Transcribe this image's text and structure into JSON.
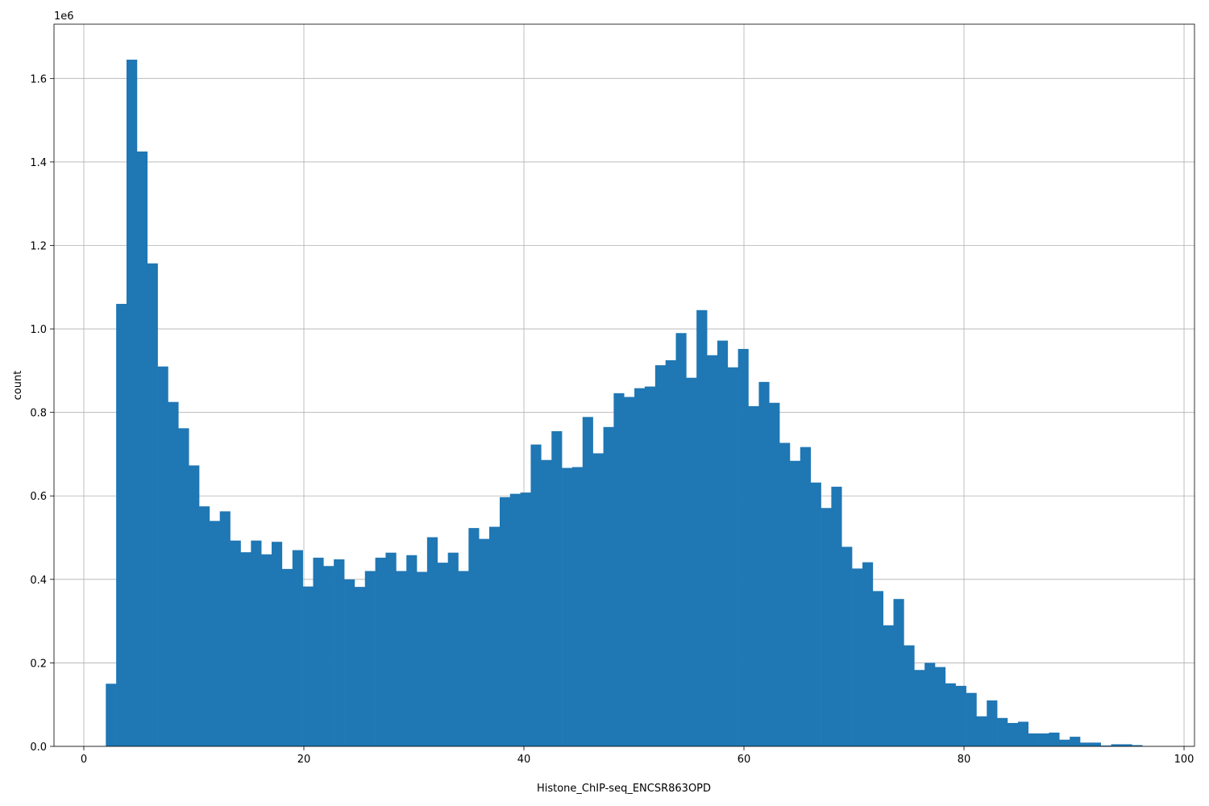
{
  "chart_data": {
    "type": "histogram",
    "x_label": "Histone_ChIP-seq_ENCSR863OPD",
    "y_label": "count",
    "y_offset_label": "1e6",
    "color": "#1f77b4",
    "grid": true,
    "bins": [
      2.0,
      2.94,
      3.88,
      4.83,
      5.77,
      6.71,
      7.65,
      8.59,
      9.54,
      10.48,
      11.42,
      12.36,
      13.3,
      14.25,
      15.19,
      16.13,
      17.07,
      18.01,
      18.96,
      19.9,
      20.84,
      21.78,
      22.72,
      23.67,
      24.61,
      25.55,
      26.49,
      27.43,
      28.38,
      29.32,
      30.26,
      31.2,
      32.14,
      33.09,
      34.03,
      34.97,
      35.91,
      36.85,
      37.8,
      38.74,
      39.68,
      40.62,
      41.56,
      42.51,
      43.45,
      44.39,
      45.33,
      46.27,
      47.22,
      48.16,
      49.1,
      50.04,
      50.98,
      51.93,
      52.87,
      53.81,
      54.75,
      55.69,
      56.64,
      57.58,
      58.52,
      59.46,
      60.4,
      61.35,
      62.29,
      63.23,
      64.17,
      65.11,
      66.06,
      67.0,
      67.94,
      68.88,
      69.82,
      70.77,
      71.71,
      72.65,
      73.59,
      74.53,
      75.48,
      76.42,
      77.36,
      78.3,
      79.24,
      80.19,
      81.13,
      82.07,
      83.01,
      83.95,
      84.9,
      85.84,
      86.78,
      87.72,
      88.66,
      89.61,
      90.55,
      91.49,
      92.43,
      93.37,
      94.32,
      95.26,
      96.2
    ],
    "values": [
      150000,
      1060000,
      1645000,
      1425000,
      1157000,
      910000,
      825000,
      762000,
      673000,
      575000,
      540000,
      563000,
      493000,
      465000,
      493000,
      460000,
      490000,
      425000,
      470000,
      383000,
      452000,
      432000,
      448000,
      400000,
      382000,
      420000,
      452000,
      464000,
      420000,
      458000,
      418000,
      501000,
      440000,
      464000,
      420000,
      523000,
      497000,
      526000,
      597000,
      605000,
      608000,
      723000,
      686000,
      755000,
      667000,
      669000,
      789000,
      702000,
      765000,
      846000,
      837000,
      858000,
      862000,
      913000,
      925000,
      990000,
      883000,
      1045000,
      937000,
      972000,
      908000,
      952000,
      815000,
      873000,
      823000,
      727000,
      684000,
      717000,
      632000,
      571000,
      622000,
      478000,
      426000,
      441000,
      372000,
      290000,
      353000,
      242000,
      183000,
      200000,
      190000,
      151000,
      145000,
      128000,
      72000,
      110000,
      68000,
      56000,
      59000,
      31000,
      31000,
      33000,
      16000,
      23000,
      9000,
      9000,
      2000,
      5000,
      5000,
      3000
    ],
    "xlim": [
      -2.71,
      100.95
    ],
    "xticks": [
      0,
      20,
      40,
      60,
      80,
      100
    ],
    "ylim": [
      0,
      1730000
    ],
    "yticks": [
      {
        "value": 0,
        "label": "0.0"
      },
      {
        "value": 200000,
        "label": "0.2"
      },
      {
        "value": 400000,
        "label": "0.4"
      },
      {
        "value": 600000,
        "label": "0.6"
      },
      {
        "value": 800000,
        "label": "0.8"
      },
      {
        "value": 1000000,
        "label": "1.0"
      },
      {
        "value": 1200000,
        "label": "1.2"
      },
      {
        "value": 1400000,
        "label": "1.4"
      },
      {
        "value": 1600000,
        "label": "1.6"
      }
    ]
  }
}
